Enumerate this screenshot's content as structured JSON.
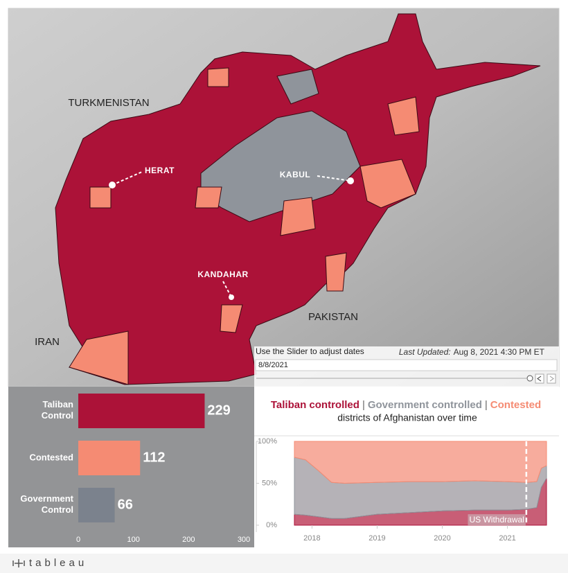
{
  "map": {
    "labels": [
      "TURKMENISTAN",
      "IRAN",
      "PAKISTAN"
    ],
    "cities": [
      "HERAT",
      "KABUL",
      "KANDAHAR"
    ]
  },
  "controls": {
    "slider_hint": "Use the Slider to adjust dates",
    "updated_label": "Last Updated:",
    "updated_value": "Aug 8, 2021 4:30 PM ET",
    "date": "8/8/2021"
  },
  "chart_data": [
    {
      "type": "hbar",
      "categories": [
        "Taliban Control",
        "Contested",
        "Government Control"
      ],
      "values": [
        229,
        112,
        66
      ],
      "colors": [
        "#ac1238",
        "#f58b73",
        "#7b828d"
      ],
      "xlim": [
        0,
        300
      ],
      "xticks": [
        0,
        100,
        200,
        300
      ]
    },
    {
      "type": "stacked_area",
      "title_separator": "|",
      "subtitle": "districts of Afghanistan over time",
      "x": [
        2017.73,
        2017.9,
        2018.1,
        2018.3,
        2018.5,
        2019,
        2019.5,
        2020,
        2020.5,
        2021,
        2021.3,
        2021.45,
        2021.52,
        2021.6
      ],
      "series": [
        {
          "name": "Taliban controlled",
          "color": "#ac1238",
          "values": [
            13,
            12,
            10,
            8,
            8,
            13,
            15,
            17,
            18,
            18,
            19,
            21,
            45,
            56
          ]
        },
        {
          "name": "Government controlled",
          "color": "#8f949b",
          "values": [
            68,
            66,
            55,
            43,
            42,
            38,
            37,
            35,
            35,
            34,
            32,
            31,
            23,
            15
          ]
        },
        {
          "name": "Contested",
          "color": "#f58b73",
          "values": [
            19,
            22,
            35,
            49,
            50,
            49,
            48,
            48,
            47,
            48,
            49,
            48,
            32,
            29
          ]
        }
      ],
      "xlim": [
        2017.73,
        2021.6
      ],
      "xticks": [
        2018,
        2019,
        2020,
        2021
      ],
      "ylim": [
        0,
        100
      ],
      "yticks": [
        {
          "value": 0,
          "label": "0%"
        },
        {
          "value": 50,
          "label": "50%"
        },
        {
          "value": 100,
          "label": "100%"
        }
      ],
      "annotation": {
        "x": 2021.29,
        "label": "US Withdrawal"
      }
    }
  ],
  "footer": {
    "brand": "tableau"
  }
}
